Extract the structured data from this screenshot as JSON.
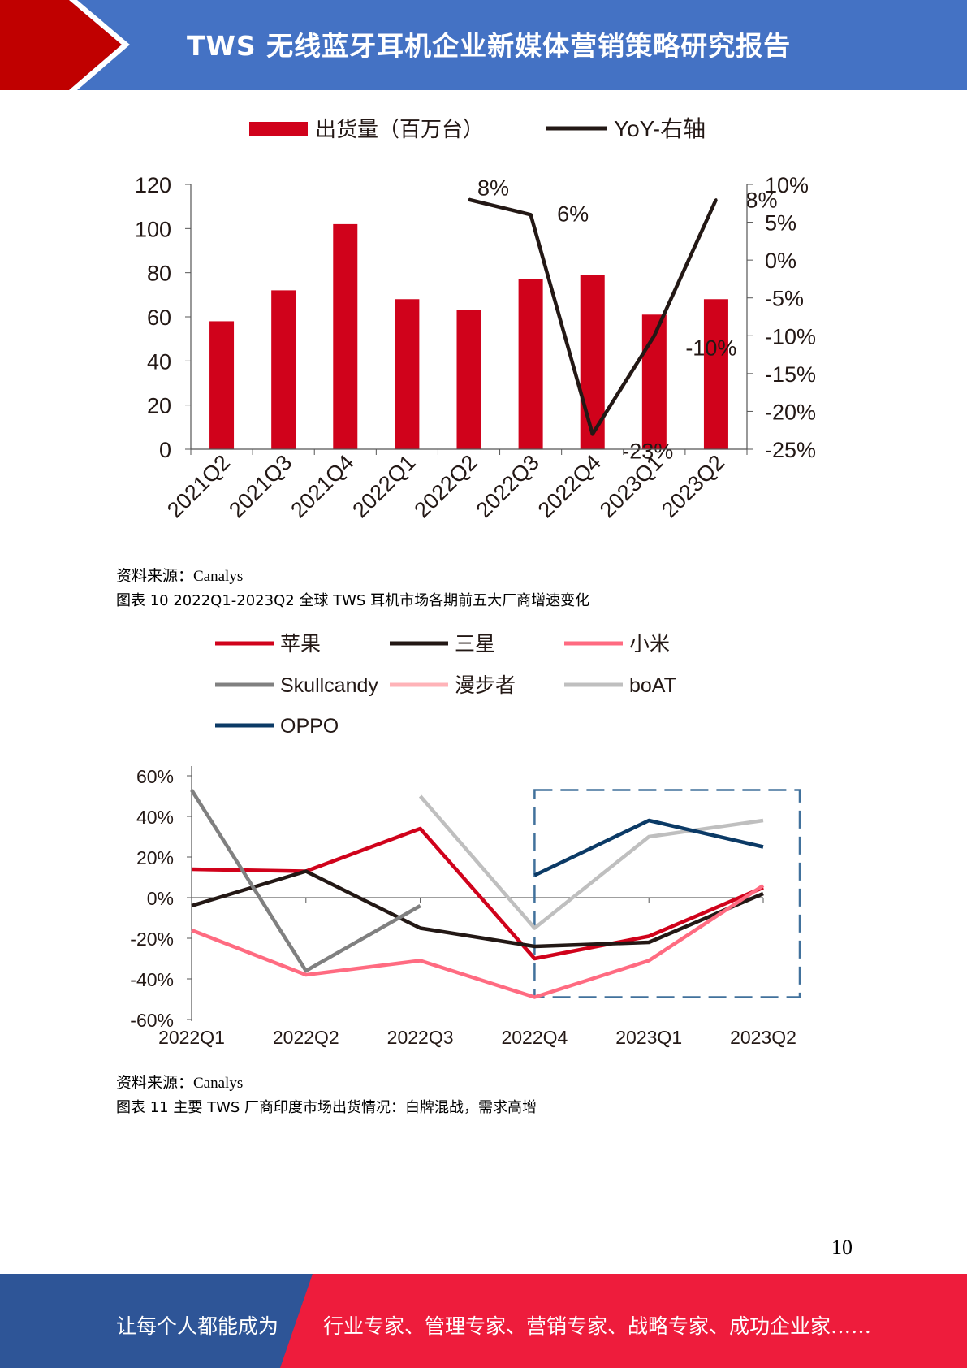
{
  "header": {
    "title": "TWS 无线蓝牙耳机企业新媒体营销策略研究报告"
  },
  "charts": [
    {
      "legend": {
        "bar_label": "出货量（百万台）",
        "line_label": "YoY-右轴"
      },
      "source": "资料来源：Canalys"
    },
    {
      "source": "资料来源：Canalys"
    }
  ],
  "captions": {
    "fig10": "图表  10 2022Q1-2023Q2 全球 TWS 耳机市场各期前五大厂商增速变化",
    "fig11": "图表  11  主要 TWS 厂商印度市场出货情况：白牌混战，需求高增"
  },
  "chart_data": [
    {
      "type": "bar",
      "categories": [
        "2021Q2",
        "2021Q3",
        "2021Q4",
        "2022Q1",
        "2022Q2",
        "2022Q3",
        "2022Q4",
        "2023Q1",
        "2023Q2"
      ],
      "series": [
        {
          "name": "出货量（百万台）",
          "type": "bar",
          "axis": "left",
          "color": "#d0021b",
          "values": [
            58,
            72,
            102,
            68,
            63,
            77,
            79,
            61,
            68
          ]
        },
        {
          "name": "YoY-右轴",
          "type": "line",
          "axis": "right",
          "color": "#231815",
          "values": [
            null,
            null,
            null,
            null,
            8,
            6,
            -23,
            -10,
            8
          ],
          "data_labels": [
            "",
            "",
            "",
            "",
            "8%",
            "6%",
            "-23%",
            "-10%",
            "8%"
          ]
        }
      ],
      "ylim_left": [
        0,
        120
      ],
      "yticks_left": [
        0,
        20,
        40,
        60,
        80,
        100,
        120
      ],
      "ylim_right": [
        -25,
        10
      ],
      "yticks_right": [
        "-25%",
        "-20%",
        "-15%",
        "-10%",
        "-5%",
        "0%",
        "5%",
        "10%"
      ],
      "legend_position": "top"
    },
    {
      "type": "line",
      "categories": [
        "2022Q1",
        "2022Q2",
        "2022Q3",
        "2022Q4",
        "2023Q1",
        "2023Q2"
      ],
      "ylim": [
        -60,
        60
      ],
      "yticks": [
        "-60%",
        "-40%",
        "-20%",
        "0%",
        "20%",
        "40%",
        "60%"
      ],
      "legend_position": "top",
      "highlight_box": {
        "from": "2022Q4",
        "to": "2023Q2"
      },
      "series": [
        {
          "name": "苹果",
          "color": "#d0021b",
          "values": [
            14,
            13,
            34,
            -30,
            -19,
            5
          ]
        },
        {
          "name": "三星",
          "color": "#231815",
          "values": [
            -4,
            13,
            -15,
            -24,
            -22,
            2
          ]
        },
        {
          "name": "小米",
          "color": "#ff6b81",
          "values": [
            -16,
            -38,
            -31,
            -49,
            -31,
            6
          ]
        },
        {
          "name": "Skullcandy",
          "color": "#808080",
          "values": [
            53,
            -36,
            -4,
            null,
            null,
            null
          ]
        },
        {
          "name": "漫步者",
          "color": "#ffb3b8",
          "values": [
            null,
            null,
            null,
            null,
            null,
            null
          ]
        },
        {
          "name": "boAT",
          "color": "#bfbfbf",
          "values": [
            null,
            null,
            50,
            -15,
            30,
            38
          ]
        },
        {
          "name": "OPPO",
          "color": "#0b3a66",
          "values": [
            null,
            null,
            null,
            11,
            38,
            25
          ]
        }
      ]
    }
  ],
  "page_number": "10",
  "footer": {
    "left": "让每个人都能成为",
    "right": "行业专家、管理专家、营销专家、战略专家、成功企业家……"
  }
}
